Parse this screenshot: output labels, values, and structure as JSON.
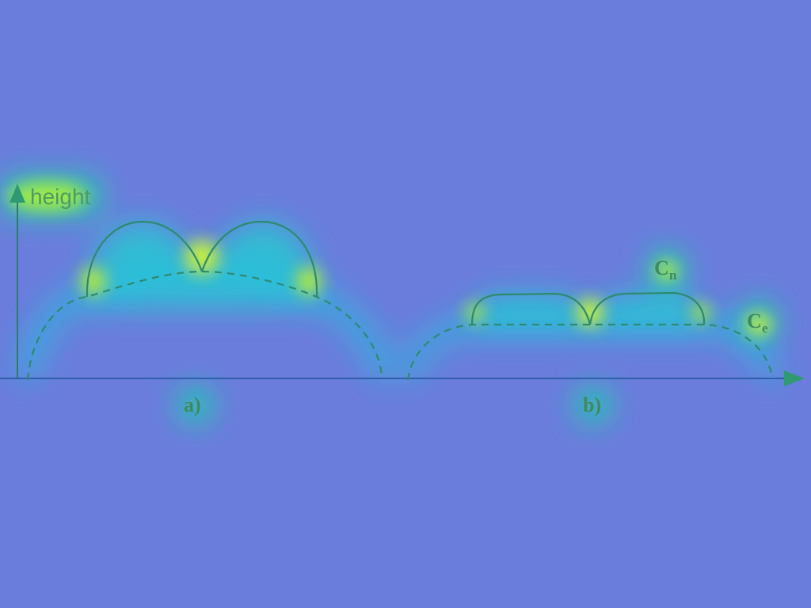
{
  "axis": {
    "y_label": "height"
  },
  "panels": [
    {
      "label": "a)"
    },
    {
      "label": "b)"
    }
  ],
  "curves": {
    "cn": {
      "main": "C",
      "sub": "n"
    },
    "ce": {
      "main": "C",
      "sub": "e"
    }
  },
  "colors": {
    "background": "#6b7ddc",
    "line": "#2f8a6e",
    "glow": "#c8ff3c"
  }
}
